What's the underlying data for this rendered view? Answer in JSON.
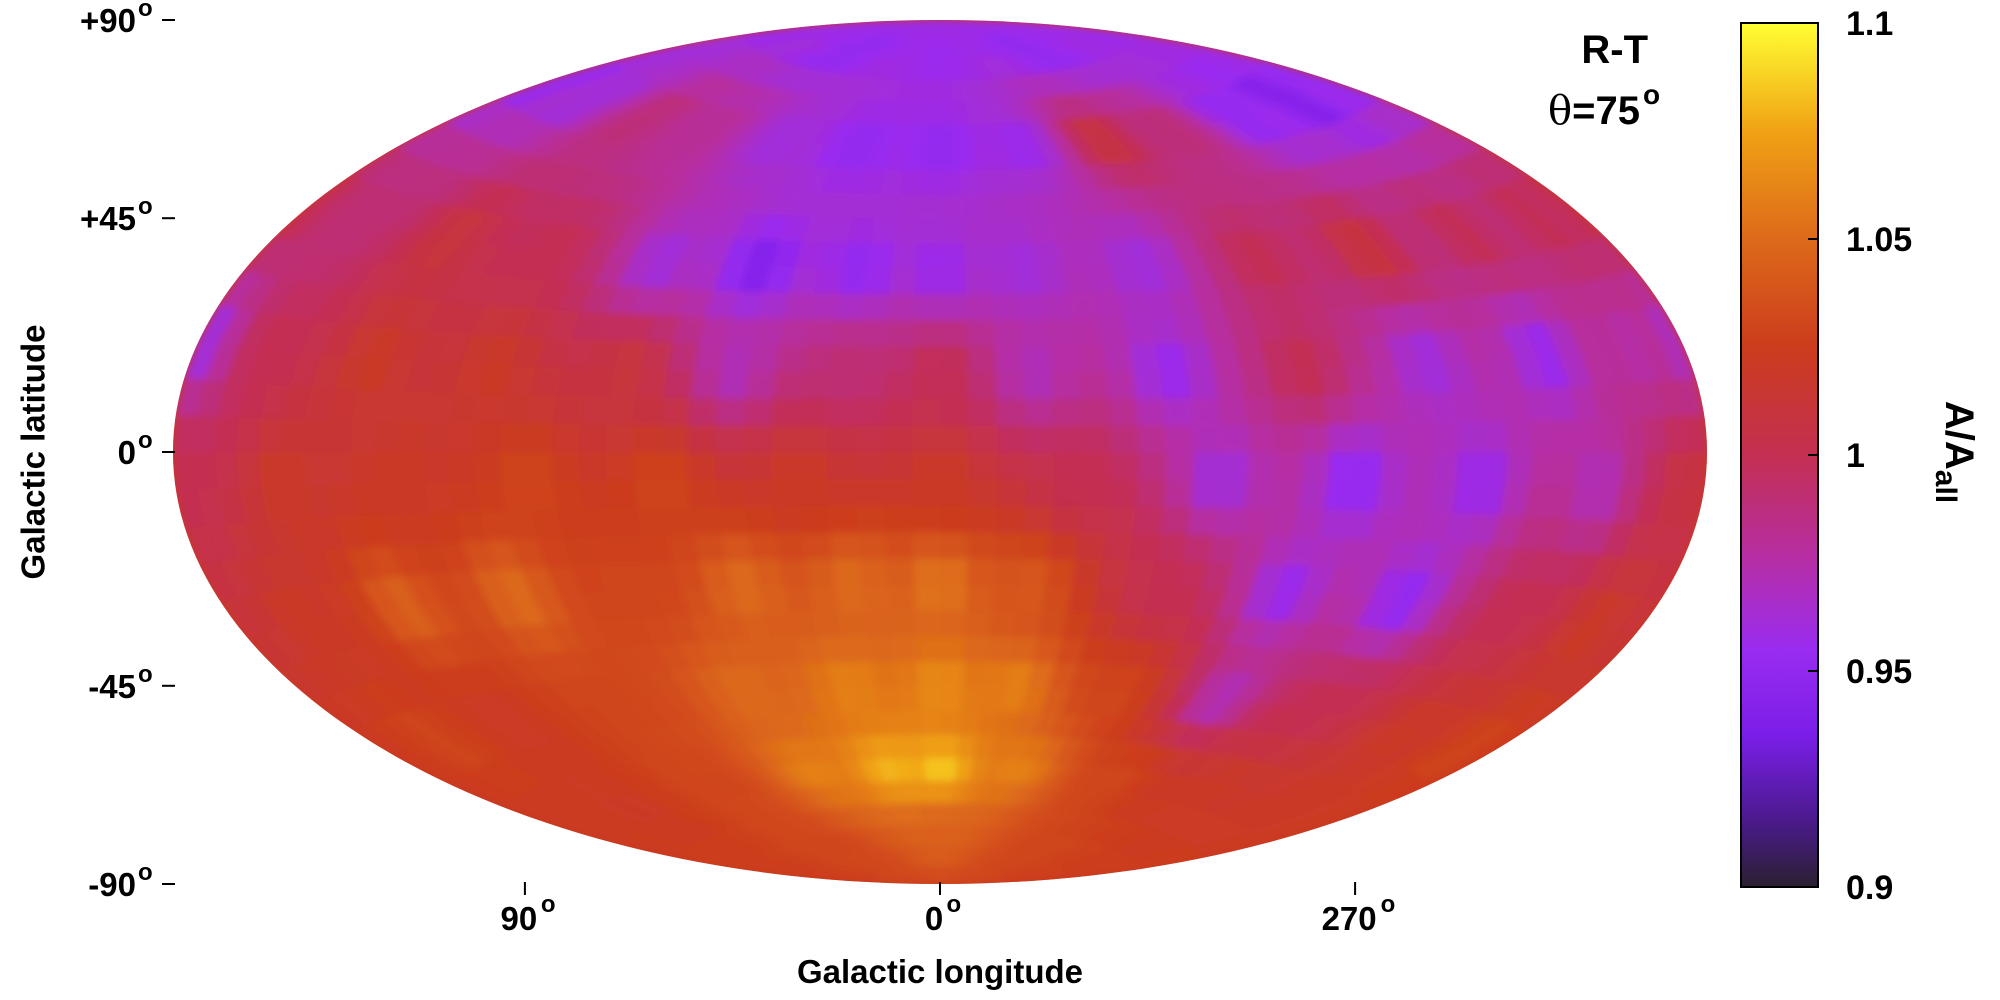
{
  "chart_data": {
    "type": "heatmap",
    "projection": "hammer-aitoff (all-sky, galactic coordinates)",
    "title": "",
    "annotation": {
      "label": "R-T",
      "theta_symbol": "θ",
      "theta_value": "=75",
      "theta_sup": "o"
    },
    "xlabel": "Galactic longitude",
    "ylabel": "Galactic latitude",
    "x_ticks": [
      {
        "lon": 90,
        "text": "90",
        "sup": "o"
      },
      {
        "lon": 0,
        "text": "0",
        "sup": "o"
      },
      {
        "lon": 270,
        "text": "270",
        "sup": "o"
      }
    ],
    "y_ticks": [
      {
        "lat": 90,
        "text": "+90",
        "sup": "o"
      },
      {
        "lat": 45,
        "text": "+45",
        "sup": "o"
      },
      {
        "lat": 0,
        "text": "0",
        "sup": "o"
      },
      {
        "lat": -45,
        "text": "-45",
        "sup": "o"
      },
      {
        "lat": -90,
        "text": "-90",
        "sup": "o"
      }
    ],
    "colorbar": {
      "label_main": "A/A",
      "label_sub": "all",
      "range": [
        0.9,
        1.1
      ],
      "ticks": [
        {
          "value": 1.1,
          "text": "1.1"
        },
        {
          "value": 1.05,
          "text": "1.05"
        },
        {
          "value": 1.0,
          "text": "1"
        },
        {
          "value": 0.95,
          "text": "0.95"
        },
        {
          "value": 0.9,
          "text": "0.9"
        }
      ],
      "colormap": [
        {
          "value": 0.9,
          "color": "#2a2030"
        },
        {
          "value": 0.915,
          "color": "#4a1a8a"
        },
        {
          "value": 0.935,
          "color": "#7a1ee8"
        },
        {
          "value": 0.955,
          "color": "#9a2cf0"
        },
        {
          "value": 0.975,
          "color": "#b52ea8"
        },
        {
          "value": 1.0,
          "color": "#c42f52"
        },
        {
          "value": 1.025,
          "color": "#cc3c1c"
        },
        {
          "value": 1.05,
          "color": "#dd6a1a"
        },
        {
          "value": 1.075,
          "color": "#f0a214"
        },
        {
          "value": 1.1,
          "color": "#ffff33"
        }
      ]
    },
    "grid": false,
    "map_samples": {
      "comment": "approximate A/A_all read off the map (lon, lat in degrees; galactic longitude increases to the left)",
      "points": [
        [
          0,
          80,
          0.955
        ],
        [
          90,
          80,
          0.95
        ],
        [
          270,
          80,
          0.95
        ],
        [
          180,
          80,
          0.955
        ],
        [
          0,
          60,
          0.95
        ],
        [
          30,
          60,
          0.95
        ],
        [
          60,
          60,
          0.96
        ],
        [
          90,
          60,
          0.98
        ],
        [
          120,
          60,
          0.99
        ],
        [
          150,
          60,
          0.96
        ],
        [
          180,
          60,
          0.95
        ],
        [
          330,
          60,
          0.955
        ],
        [
          300,
          60,
          1.01
        ],
        [
          270,
          60,
          0.99
        ],
        [
          240,
          60,
          0.95
        ],
        [
          210,
          60,
          0.94
        ],
        [
          0,
          35,
          0.955
        ],
        [
          20,
          35,
          0.95
        ],
        [
          45,
          35,
          0.94
        ],
        [
          70,
          35,
          0.96
        ],
        [
          100,
          35,
          1.0
        ],
        [
          130,
          35,
          1.01
        ],
        [
          160,
          35,
          0.99
        ],
        [
          180,
          35,
          1.0
        ],
        [
          340,
          35,
          0.96
        ],
        [
          310,
          35,
          0.96
        ],
        [
          280,
          35,
          1.0
        ],
        [
          250,
          35,
          1.01
        ],
        [
          220,
          35,
          1.0
        ],
        [
          195,
          35,
          1.0
        ],
        [
          0,
          15,
          1.0
        ],
        [
          20,
          15,
          0.99
        ],
        [
          45,
          15,
          0.97
        ],
        [
          70,
          15,
          1.01
        ],
        [
          100,
          15,
          1.02
        ],
        [
          130,
          15,
          1.02
        ],
        [
          160,
          15,
          1.0
        ],
        [
          178,
          15,
          0.96
        ],
        [
          340,
          15,
          0.97
        ],
        [
          310,
          15,
          0.955
        ],
        [
          280,
          15,
          1.0
        ],
        [
          250,
          15,
          0.96
        ],
        [
          220,
          15,
          0.955
        ],
        [
          195,
          15,
          0.975
        ],
        [
          0,
          -5,
          1.02
        ],
        [
          30,
          -5,
          1.02
        ],
        [
          60,
          -5,
          1.03
        ],
        [
          90,
          -5,
          1.03
        ],
        [
          120,
          -5,
          1.02
        ],
        [
          150,
          -5,
          1.02
        ],
        [
          178,
          -5,
          1.0
        ],
        [
          330,
          -5,
          1.0
        ],
        [
          300,
          -5,
          0.96
        ],
        [
          270,
          -5,
          0.95
        ],
        [
          240,
          -5,
          0.955
        ],
        [
          210,
          -5,
          0.97
        ],
        [
          185,
          -5,
          1.01
        ],
        [
          0,
          -25,
          1.055
        ],
        [
          20,
          -25,
          1.05
        ],
        [
          45,
          -25,
          1.05
        ],
        [
          70,
          -25,
          1.03
        ],
        [
          100,
          -25,
          1.05
        ],
        [
          130,
          -25,
          1.045
        ],
        [
          160,
          -25,
          1.02
        ],
        [
          340,
          -25,
          1.04
        ],
        [
          310,
          -25,
          1.0
        ],
        [
          280,
          -25,
          0.955
        ],
        [
          250,
          -25,
          0.95
        ],
        [
          220,
          -25,
          1.0
        ],
        [
          195,
          -25,
          1.02
        ],
        [
          0,
          -45,
          1.065
        ],
        [
          25,
          -45,
          1.06
        ],
        [
          55,
          -45,
          1.05
        ],
        [
          90,
          -45,
          1.03
        ],
        [
          130,
          -45,
          1.02
        ],
        [
          160,
          -45,
          1.03
        ],
        [
          340,
          -45,
          1.06
        ],
        [
          310,
          -45,
          1.03
        ],
        [
          280,
          -45,
          0.97
        ],
        [
          250,
          -45,
          1.0
        ],
        [
          215,
          -45,
          1.02
        ],
        [
          190,
          -45,
          1.03
        ],
        [
          0,
          -62,
          1.085
        ],
        [
          20,
          -62,
          1.08
        ],
        [
          50,
          -62,
          1.06
        ],
        [
          90,
          -62,
          1.03
        ],
        [
          140,
          -62,
          1.02
        ],
        [
          330,
          -62,
          1.06
        ],
        [
          290,
          -62,
          1.03
        ],
        [
          250,
          -62,
          1.02
        ],
        [
          210,
          -62,
          1.02
        ],
        [
          0,
          -78,
          1.045
        ],
        [
          90,
          -78,
          1.03
        ],
        [
          270,
          -78,
          1.03
        ],
        [
          180,
          -78,
          1.025
        ]
      ]
    }
  }
}
